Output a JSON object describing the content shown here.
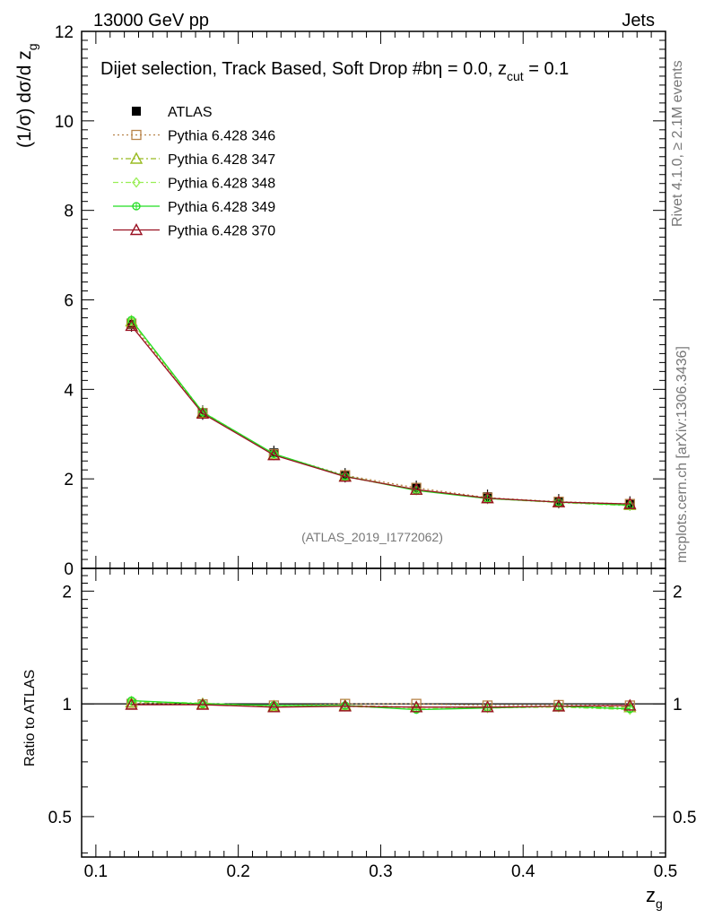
{
  "header": {
    "left": "13000 GeV pp",
    "right": "Jets"
  },
  "side_labels": {
    "rivet": "Rivet 4.1.0, ≥ 2.1M events",
    "mcplots": "mcplots.cern.ch [arXiv:1306.3436]"
  },
  "colors": {
    "atlas": "#000000",
    "p346": "#b8844a",
    "p347": "#99bb22",
    "p348": "#99ee55",
    "p349": "#22dd22",
    "p370": "#991122"
  },
  "chart_data": [
    {
      "panel": "main",
      "type": "line",
      "title": "Dijet selection, Track Based, Soft Drop #bη = 0.0, z",
      "title_sub": "cut",
      "title_tail": " = 0.1",
      "watermark": "(ATLAS_2019_I1772062)",
      "xlabel": "z",
      "xlabel_sub": "g",
      "ylabel": "(1/σ) dσ/d z",
      "ylabel_sub": "g",
      "xlim": [
        0.09,
        0.5
      ],
      "ylim": [
        0,
        12
      ],
      "yticks": [
        0,
        2,
        4,
        6,
        8,
        10,
        12
      ],
      "ytick_labels": [
        "0",
        "2",
        "4",
        "6",
        "8",
        "10",
        "12"
      ],
      "x": [
        0.125,
        0.175,
        0.225,
        0.275,
        0.325,
        0.375,
        0.425,
        0.475
      ],
      "legend_position": "top-left",
      "series": [
        {
          "name": "ATLAS",
          "key": "atlas",
          "marker": "square-filled",
          "line": "none",
          "values": [
            5.45,
            3.48,
            2.58,
            2.08,
            1.8,
            1.6,
            1.5,
            1.45
          ]
        },
        {
          "name": "Pythia 6.428 346",
          "key": "p346",
          "marker": "square-open",
          "line": "dotted",
          "values": [
            5.47,
            3.47,
            2.55,
            2.08,
            1.8,
            1.58,
            1.49,
            1.44
          ]
        },
        {
          "name": "Pythia 6.428 347",
          "key": "p347",
          "marker": "triangle-open",
          "line": "dashdot",
          "values": [
            5.52,
            3.48,
            2.54,
            2.06,
            1.76,
            1.57,
            1.48,
            1.42
          ]
        },
        {
          "name": "Pythia 6.428 348",
          "key": "p348",
          "marker": "diamond-open",
          "line": "dashdot",
          "values": [
            5.53,
            3.5,
            2.55,
            2.05,
            1.75,
            1.56,
            1.47,
            1.4
          ]
        },
        {
          "name": "Pythia 6.428 349",
          "key": "p349",
          "marker": "circle-cross",
          "line": "solid",
          "values": [
            5.55,
            3.49,
            2.56,
            2.06,
            1.74,
            1.56,
            1.48,
            1.41
          ]
        },
        {
          "name": "Pythia 6.428 370",
          "key": "p370",
          "marker": "triangle-open",
          "line": "solid",
          "values": [
            5.42,
            3.46,
            2.53,
            2.05,
            1.76,
            1.57,
            1.48,
            1.44
          ]
        }
      ]
    },
    {
      "panel": "ratio",
      "type": "line",
      "ylabel": "Ratio to ATLAS",
      "xlabel": "z",
      "xlabel_sub": "g",
      "xlim": [
        0.09,
        0.5
      ],
      "ylim": [
        0.4,
        2.4
      ],
      "yscale": "log",
      "yticks": [
        0.5,
        1,
        2
      ],
      "ytick_labels": [
        "0.5",
        "1",
        "2"
      ],
      "xticks": [
        0.1,
        0.2,
        0.3,
        0.4,
        0.5
      ],
      "xtick_labels": [
        "0.1",
        "0.2",
        "0.3",
        "0.4",
        "0.5"
      ],
      "x": [
        0.125,
        0.175,
        0.225,
        0.275,
        0.325,
        0.375,
        0.425,
        0.475
      ],
      "series": [
        {
          "name": "Pythia 6.428 346",
          "key": "p346",
          "values": [
            1.0,
            0.997,
            0.99,
            1.0,
            1.0,
            0.99,
            0.993,
            0.99
          ]
        },
        {
          "name": "Pythia 6.428 347",
          "key": "p347",
          "values": [
            1.01,
            1.0,
            0.985,
            0.99,
            0.98,
            0.98,
            0.985,
            0.98
          ]
        },
        {
          "name": "Pythia 6.428 348",
          "key": "p348",
          "values": [
            1.015,
            1.005,
            0.985,
            0.985,
            0.97,
            0.975,
            0.98,
            0.965
          ]
        },
        {
          "name": "Pythia 6.428 349",
          "key": "p349",
          "values": [
            1.02,
            1.0,
            0.99,
            0.99,
            0.965,
            0.975,
            0.985,
            0.97
          ]
        },
        {
          "name": "Pythia 6.428 370",
          "key": "p370",
          "values": [
            0.995,
            0.995,
            0.98,
            0.985,
            0.98,
            0.98,
            0.985,
            0.99
          ]
        }
      ]
    }
  ]
}
